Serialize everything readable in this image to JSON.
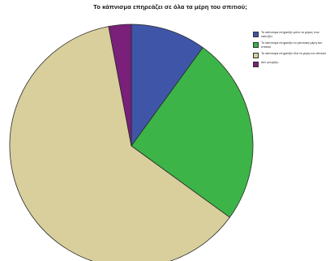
{
  "chart_data": {
    "type": "pie",
    "title": "Το κάπνισμα επηρεάζει σε όλα τα μέρη του σπιτιού;",
    "series": [
      {
        "name": "Το κάπνισμα επηρεάζει μόνο το μέρος που καπνίζει",
        "value": 10,
        "color": "#3f56a8"
      },
      {
        "name": "Το κάπνισμα επηρεάζει τα γειτονικά μέρη του σπιτιού",
        "value": 25,
        "color": "#3cb447"
      },
      {
        "name": "Το κάπνισμα επηρεάζει όλα τα μέρη του σπιτιού",
        "value": 62,
        "color": "#d8cf9c"
      },
      {
        "name": "Δεν γνωρίζω",
        "value": 3,
        "color": "#7a1f7a"
      }
    ],
    "start_angle_deg": 0,
    "direction": "clockwise",
    "legend_position": "right"
  }
}
